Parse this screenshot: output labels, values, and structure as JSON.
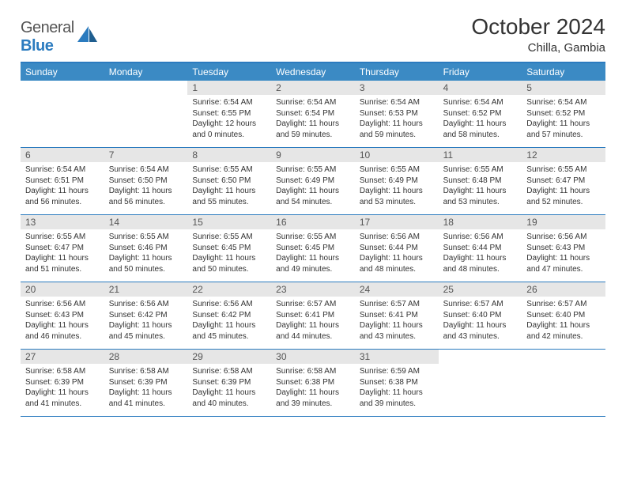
{
  "brand": {
    "part1": "General",
    "part2": "Blue"
  },
  "title": "October 2024",
  "location": "Chilla, Gambia",
  "colors": {
    "accent": "#2b7bbf",
    "header_bg": "#3b8ac4",
    "daynum_bg": "#e6e6e6",
    "text": "#333333"
  },
  "dow": [
    "Sunday",
    "Monday",
    "Tuesday",
    "Wednesday",
    "Thursday",
    "Friday",
    "Saturday"
  ],
  "weeks": [
    [
      {
        "n": "",
        "sr": "",
        "ss": "",
        "dl": ""
      },
      {
        "n": "",
        "sr": "",
        "ss": "",
        "dl": ""
      },
      {
        "n": "1",
        "sr": "Sunrise: 6:54 AM",
        "ss": "Sunset: 6:55 PM",
        "dl": "Daylight: 12 hours and 0 minutes."
      },
      {
        "n": "2",
        "sr": "Sunrise: 6:54 AM",
        "ss": "Sunset: 6:54 PM",
        "dl": "Daylight: 11 hours and 59 minutes."
      },
      {
        "n": "3",
        "sr": "Sunrise: 6:54 AM",
        "ss": "Sunset: 6:53 PM",
        "dl": "Daylight: 11 hours and 59 minutes."
      },
      {
        "n": "4",
        "sr": "Sunrise: 6:54 AM",
        "ss": "Sunset: 6:52 PM",
        "dl": "Daylight: 11 hours and 58 minutes."
      },
      {
        "n": "5",
        "sr": "Sunrise: 6:54 AM",
        "ss": "Sunset: 6:52 PM",
        "dl": "Daylight: 11 hours and 57 minutes."
      }
    ],
    [
      {
        "n": "6",
        "sr": "Sunrise: 6:54 AM",
        "ss": "Sunset: 6:51 PM",
        "dl": "Daylight: 11 hours and 56 minutes."
      },
      {
        "n": "7",
        "sr": "Sunrise: 6:54 AM",
        "ss": "Sunset: 6:50 PM",
        "dl": "Daylight: 11 hours and 56 minutes."
      },
      {
        "n": "8",
        "sr": "Sunrise: 6:55 AM",
        "ss": "Sunset: 6:50 PM",
        "dl": "Daylight: 11 hours and 55 minutes."
      },
      {
        "n": "9",
        "sr": "Sunrise: 6:55 AM",
        "ss": "Sunset: 6:49 PM",
        "dl": "Daylight: 11 hours and 54 minutes."
      },
      {
        "n": "10",
        "sr": "Sunrise: 6:55 AM",
        "ss": "Sunset: 6:49 PM",
        "dl": "Daylight: 11 hours and 53 minutes."
      },
      {
        "n": "11",
        "sr": "Sunrise: 6:55 AM",
        "ss": "Sunset: 6:48 PM",
        "dl": "Daylight: 11 hours and 53 minutes."
      },
      {
        "n": "12",
        "sr": "Sunrise: 6:55 AM",
        "ss": "Sunset: 6:47 PM",
        "dl": "Daylight: 11 hours and 52 minutes."
      }
    ],
    [
      {
        "n": "13",
        "sr": "Sunrise: 6:55 AM",
        "ss": "Sunset: 6:47 PM",
        "dl": "Daylight: 11 hours and 51 minutes."
      },
      {
        "n": "14",
        "sr": "Sunrise: 6:55 AM",
        "ss": "Sunset: 6:46 PM",
        "dl": "Daylight: 11 hours and 50 minutes."
      },
      {
        "n": "15",
        "sr": "Sunrise: 6:55 AM",
        "ss": "Sunset: 6:45 PM",
        "dl": "Daylight: 11 hours and 50 minutes."
      },
      {
        "n": "16",
        "sr": "Sunrise: 6:55 AM",
        "ss": "Sunset: 6:45 PM",
        "dl": "Daylight: 11 hours and 49 minutes."
      },
      {
        "n": "17",
        "sr": "Sunrise: 6:56 AM",
        "ss": "Sunset: 6:44 PM",
        "dl": "Daylight: 11 hours and 48 minutes."
      },
      {
        "n": "18",
        "sr": "Sunrise: 6:56 AM",
        "ss": "Sunset: 6:44 PM",
        "dl": "Daylight: 11 hours and 48 minutes."
      },
      {
        "n": "19",
        "sr": "Sunrise: 6:56 AM",
        "ss": "Sunset: 6:43 PM",
        "dl": "Daylight: 11 hours and 47 minutes."
      }
    ],
    [
      {
        "n": "20",
        "sr": "Sunrise: 6:56 AM",
        "ss": "Sunset: 6:43 PM",
        "dl": "Daylight: 11 hours and 46 minutes."
      },
      {
        "n": "21",
        "sr": "Sunrise: 6:56 AM",
        "ss": "Sunset: 6:42 PM",
        "dl": "Daylight: 11 hours and 45 minutes."
      },
      {
        "n": "22",
        "sr": "Sunrise: 6:56 AM",
        "ss": "Sunset: 6:42 PM",
        "dl": "Daylight: 11 hours and 45 minutes."
      },
      {
        "n": "23",
        "sr": "Sunrise: 6:57 AM",
        "ss": "Sunset: 6:41 PM",
        "dl": "Daylight: 11 hours and 44 minutes."
      },
      {
        "n": "24",
        "sr": "Sunrise: 6:57 AM",
        "ss": "Sunset: 6:41 PM",
        "dl": "Daylight: 11 hours and 43 minutes."
      },
      {
        "n": "25",
        "sr": "Sunrise: 6:57 AM",
        "ss": "Sunset: 6:40 PM",
        "dl": "Daylight: 11 hours and 43 minutes."
      },
      {
        "n": "26",
        "sr": "Sunrise: 6:57 AM",
        "ss": "Sunset: 6:40 PM",
        "dl": "Daylight: 11 hours and 42 minutes."
      }
    ],
    [
      {
        "n": "27",
        "sr": "Sunrise: 6:58 AM",
        "ss": "Sunset: 6:39 PM",
        "dl": "Daylight: 11 hours and 41 minutes."
      },
      {
        "n": "28",
        "sr": "Sunrise: 6:58 AM",
        "ss": "Sunset: 6:39 PM",
        "dl": "Daylight: 11 hours and 41 minutes."
      },
      {
        "n": "29",
        "sr": "Sunrise: 6:58 AM",
        "ss": "Sunset: 6:39 PM",
        "dl": "Daylight: 11 hours and 40 minutes."
      },
      {
        "n": "30",
        "sr": "Sunrise: 6:58 AM",
        "ss": "Sunset: 6:38 PM",
        "dl": "Daylight: 11 hours and 39 minutes."
      },
      {
        "n": "31",
        "sr": "Sunrise: 6:59 AM",
        "ss": "Sunset: 6:38 PM",
        "dl": "Daylight: 11 hours and 39 minutes."
      },
      {
        "n": "",
        "sr": "",
        "ss": "",
        "dl": ""
      },
      {
        "n": "",
        "sr": "",
        "ss": "",
        "dl": ""
      }
    ]
  ]
}
